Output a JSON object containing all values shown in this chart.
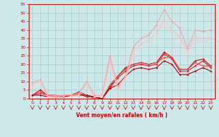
{
  "background_color": "#cde8ea",
  "grid_color": "#a8ccce",
  "xlabel": "Vent moyen/en rafales ( km/h )",
  "xlim": [
    -0.5,
    23.5
  ],
  "ylim": [
    0,
    55
  ],
  "yticks": [
    0,
    5,
    10,
    15,
    20,
    25,
    30,
    35,
    40,
    45,
    50,
    55
  ],
  "xticks": [
    0,
    1,
    2,
    3,
    4,
    5,
    6,
    7,
    8,
    9,
    10,
    11,
    12,
    13,
    14,
    15,
    16,
    17,
    18,
    19,
    20,
    21,
    22,
    23
  ],
  "series": [
    {
      "x": [
        0,
        1,
        2,
        3,
        4,
        5,
        6,
        7,
        8,
        9,
        10,
        11,
        12,
        13,
        14,
        15,
        16,
        17,
        18,
        19,
        20,
        21,
        22,
        23
      ],
      "y": [
        2,
        5,
        2,
        1,
        1,
        2,
        3,
        1,
        1,
        0,
        7,
        13,
        18,
        20,
        21,
        20,
        21,
        27,
        24,
        17,
        17,
        22,
        23,
        19
      ],
      "color": "#cc0000",
      "alpha": 1.0,
      "lw": 0.8,
      "marker": "D",
      "ms": 1.5
    },
    {
      "x": [
        0,
        1,
        2,
        3,
        4,
        5,
        6,
        7,
        8,
        9,
        10,
        11,
        12,
        13,
        14,
        15,
        16,
        17,
        18,
        19,
        20,
        21,
        22,
        23
      ],
      "y": [
        2,
        3,
        2,
        2,
        1,
        2,
        4,
        2,
        1,
        0,
        6,
        12,
        16,
        19,
        20,
        19,
        20,
        26,
        23,
        16,
        16,
        19,
        22,
        18
      ],
      "color": "#dd2222",
      "alpha": 1.0,
      "lw": 0.8,
      "marker": "D",
      "ms": 1.5
    },
    {
      "x": [
        0,
        1,
        2,
        3,
        4,
        5,
        6,
        7,
        8,
        9,
        10,
        11,
        12,
        13,
        14,
        15,
        16,
        17,
        18,
        19,
        20,
        21,
        22,
        23
      ],
      "y": [
        2,
        4,
        2,
        1,
        2,
        2,
        3,
        2,
        0,
        0,
        8,
        13,
        17,
        20,
        21,
        20,
        21,
        24,
        24,
        17,
        17,
        21,
        19,
        19
      ],
      "color": "#ee4444",
      "alpha": 1.0,
      "lw": 0.8,
      "marker": "D",
      "ms": 1.5
    },
    {
      "x": [
        0,
        1,
        2,
        3,
        4,
        5,
        6,
        7,
        8,
        9,
        10,
        11,
        12,
        13,
        14,
        15,
        16,
        17,
        18,
        19,
        20,
        21,
        22,
        23
      ],
      "y": [
        2,
        2,
        1,
        1,
        1,
        2,
        2,
        2,
        1,
        0,
        6,
        8,
        13,
        17,
        18,
        17,
        18,
        22,
        20,
        14,
        14,
        16,
        18,
        16
      ],
      "color": "#aa0000",
      "alpha": 1.0,
      "lw": 0.8,
      "marker": "D",
      "ms": 1.5
    },
    {
      "x": [
        0,
        1,
        2,
        3,
        4,
        5,
        6,
        7,
        8,
        9,
        10,
        11,
        12,
        13,
        14,
        15,
        16,
        17,
        18,
        19,
        20,
        21,
        22,
        23
      ],
      "y": [
        9,
        11,
        2,
        1,
        2,
        2,
        3,
        10,
        2,
        2,
        25,
        7,
        13,
        30,
        35,
        37,
        43,
        52,
        45,
        41,
        29,
        40,
        39,
        40
      ],
      "color": "#ff9999",
      "alpha": 0.9,
      "lw": 0.8,
      "marker": "D",
      "ms": 1.5
    },
    {
      "x": [
        0,
        1,
        2,
        3,
        4,
        5,
        6,
        7,
        8,
        9,
        10,
        11,
        12,
        13,
        14,
        15,
        16,
        17,
        18,
        19,
        20,
        21,
        22,
        23
      ],
      "y": [
        8,
        10,
        1,
        2,
        2,
        2,
        2,
        9,
        1,
        1,
        22,
        6,
        12,
        27,
        32,
        34,
        38,
        46,
        40,
        36,
        27,
        36,
        35,
        36
      ],
      "color": "#ffbbbb",
      "alpha": 0.8,
      "lw": 0.8,
      "marker": "D",
      "ms": 1.5
    },
    {
      "x": [
        0,
        1,
        2,
        3,
        4,
        5,
        6,
        7,
        8,
        9,
        10,
        11,
        12,
        13,
        14,
        15,
        16,
        17,
        18,
        19,
        20,
        21,
        22,
        23
      ],
      "y": [
        7,
        9,
        1,
        1,
        1,
        1,
        2,
        8,
        1,
        1,
        20,
        5,
        11,
        25,
        30,
        32,
        36,
        44,
        38,
        34,
        26,
        34,
        33,
        34
      ],
      "color": "#ffcccc",
      "alpha": 0.7,
      "lw": 0.8,
      "marker": "D",
      "ms": 1.5
    }
  ]
}
